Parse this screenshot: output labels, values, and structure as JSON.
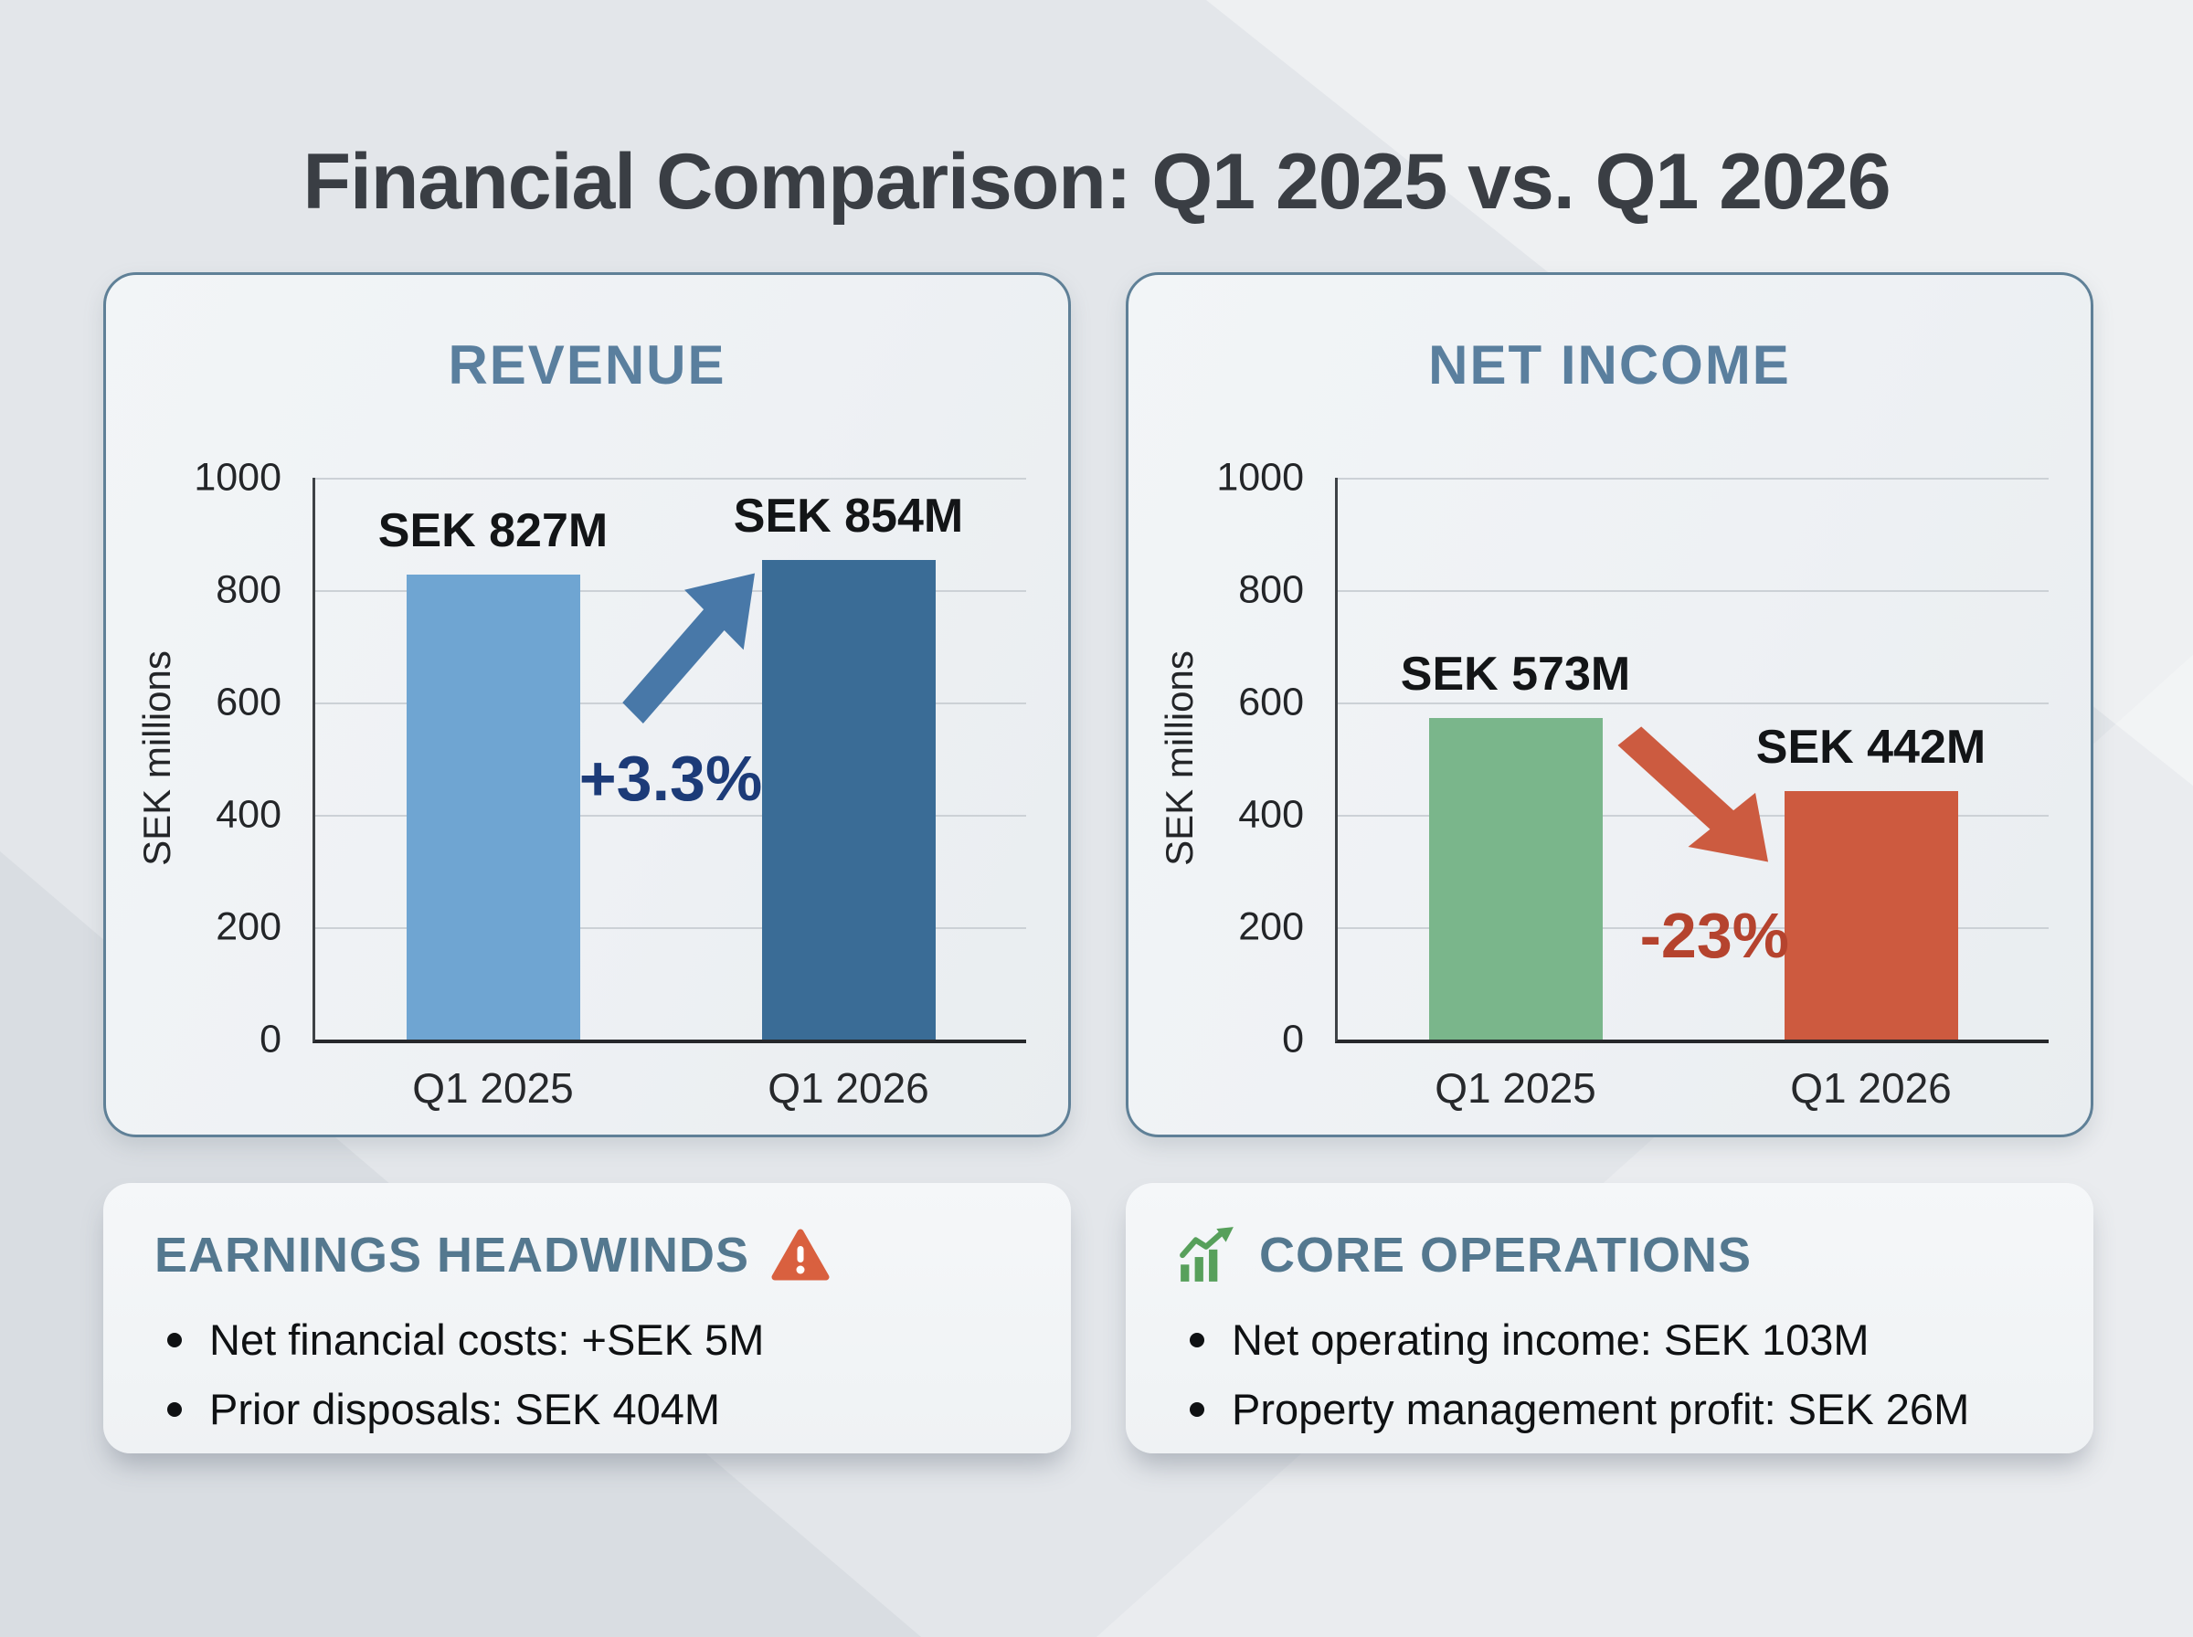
{
  "page_title": "Financial Comparison: Q1 2025 vs. Q1 2026",
  "chart_data": [
    {
      "type": "bar",
      "title": "REVENUE",
      "ylabel": "SEK millions",
      "ylim": [
        0,
        1000
      ],
      "ymax": 1000,
      "yticks": [
        "1000",
        "800",
        "600",
        "400",
        "200",
        "0"
      ],
      "categories": [
        "Q1 2025",
        "Q1 2026"
      ],
      "values": [
        827,
        854
      ],
      "bar_labels": [
        "SEK 827M",
        "SEK 854M"
      ],
      "bar_colors": [
        "#6FA5D2",
        "#3A6C96"
      ],
      "change_label": "+3.3%",
      "change_color": "#1C3B78",
      "arrow_color": "#4878A8",
      "trend": "up",
      "grid": "horizontal",
      "legend": "none"
    },
    {
      "type": "bar",
      "title": "NET INCOME",
      "ylabel": "SEK millions",
      "ylim": [
        0,
        1000
      ],
      "ymax": 1000,
      "yticks": [
        "1000",
        "800",
        "600",
        "400",
        "200",
        "0"
      ],
      "categories": [
        "Q1 2025",
        "Q1 2026"
      ],
      "values": [
        573,
        442
      ],
      "bar_labels": [
        "SEK 573M",
        "SEK 442M"
      ],
      "bar_colors": [
        "#7AB68B",
        "#CD5A3F"
      ],
      "change_label": "-23%",
      "change_color": "#B5432E",
      "arrow_color": "#CC5B40",
      "trend": "down",
      "grid": "horizontal",
      "legend": "none"
    }
  ],
  "callouts": [
    {
      "title": "EARNINGS HEADWINDS",
      "icon": "warning-triangle-icon",
      "icon_color": "#D9603F",
      "bullets": [
        "Net financial costs: +SEK 5M",
        "Prior disposals: SEK 404M"
      ]
    },
    {
      "title": "CORE OPERATIONS",
      "icon": "growth-chart-icon",
      "icon_color": "#57A05B",
      "bullets": [
        "Net operating income: SEK 103M",
        "Property management profit: SEK 26M"
      ]
    }
  ]
}
